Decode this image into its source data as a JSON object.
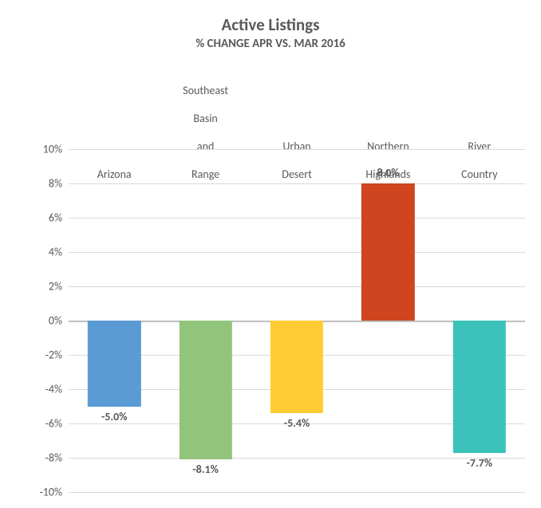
{
  "chart": {
    "type": "bar",
    "title": "Active Listings",
    "subtitle": "% CHANGE APR VS. MAR 2016",
    "title_fontsize": 21,
    "subtitle_fontsize": 15,
    "title_color": "#595959",
    "background_color": "#ffffff",
    "categories": [
      "Arizona",
      "Southeast Basin and Range",
      "Urban Desert",
      "Northern Highlands",
      "River Country"
    ],
    "values": [
      -5.0,
      -8.1,
      -5.4,
      8.0,
      -7.7
    ],
    "value_labels": [
      "-5.0%",
      "-8.1%",
      "-5.4%",
      "8.0%",
      "-7.7%"
    ],
    "bar_colors": [
      "#5b9bd5",
      "#92c57b",
      "#ffcd33",
      "#cf4520",
      "#3bc3bb"
    ],
    "yaxis": {
      "min": -10,
      "max": 10,
      "tick_step": 2,
      "tick_labels": [
        "-10%",
        "-8%",
        "-6%",
        "-4%",
        "-2%",
        "0%",
        "2%",
        "4%",
        "6%",
        "8%",
        "10%"
      ],
      "label_color": "#595959",
      "label_fontsize": 14
    },
    "category_label_fontsize": 14,
    "data_label_fontsize": 14,
    "grid_color": "#d9d9d9",
    "zero_line_color": "#bfbfbf",
    "bar_width_ratio": 0.58
  }
}
